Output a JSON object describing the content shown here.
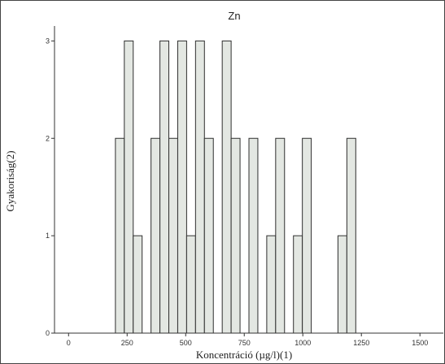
{
  "chart_data": {
    "type": "bar",
    "title": "Zn",
    "xlabel": "Koncentráció (µg/l)(1)",
    "ylabel": "Gyakoriság(2)",
    "xlim": [
      -60,
      1600
    ],
    "ylim": [
      0,
      3.12
    ],
    "xticks": [
      0,
      250,
      500,
      750,
      1000,
      1250,
      1500
    ],
    "yticks": [
      0,
      1,
      2,
      3
    ],
    "bin_width": 38,
    "bins": [
      {
        "start": 200,
        "count": 2
      },
      {
        "start": 238,
        "count": 3
      },
      {
        "start": 276,
        "count": 1
      },
      {
        "start": 314,
        "count": 0
      },
      {
        "start": 352,
        "count": 2
      },
      {
        "start": 390,
        "count": 3
      },
      {
        "start": 428,
        "count": 2
      },
      {
        "start": 466,
        "count": 3
      },
      {
        "start": 504,
        "count": 1
      },
      {
        "start": 542,
        "count": 3
      },
      {
        "start": 580,
        "count": 2
      },
      {
        "start": 618,
        "count": 0
      },
      {
        "start": 656,
        "count": 3
      },
      {
        "start": 694,
        "count": 2
      },
      {
        "start": 732,
        "count": 0
      },
      {
        "start": 770,
        "count": 2
      },
      {
        "start": 808,
        "count": 0
      },
      {
        "start": 846,
        "count": 1
      },
      {
        "start": 884,
        "count": 2
      },
      {
        "start": 922,
        "count": 0
      },
      {
        "start": 960,
        "count": 1
      },
      {
        "start": 998,
        "count": 2
      },
      {
        "start": 1036,
        "count": 0
      },
      {
        "start": 1074,
        "count": 0
      },
      {
        "start": 1112,
        "count": 0
      },
      {
        "start": 1150,
        "count": 1
      },
      {
        "start": 1188,
        "count": 2
      }
    ],
    "grid": false,
    "colors": {
      "bar_fill": "#e3e7e2",
      "bar_stroke": "#2f2f2f",
      "background": "#ffffff"
    }
  }
}
